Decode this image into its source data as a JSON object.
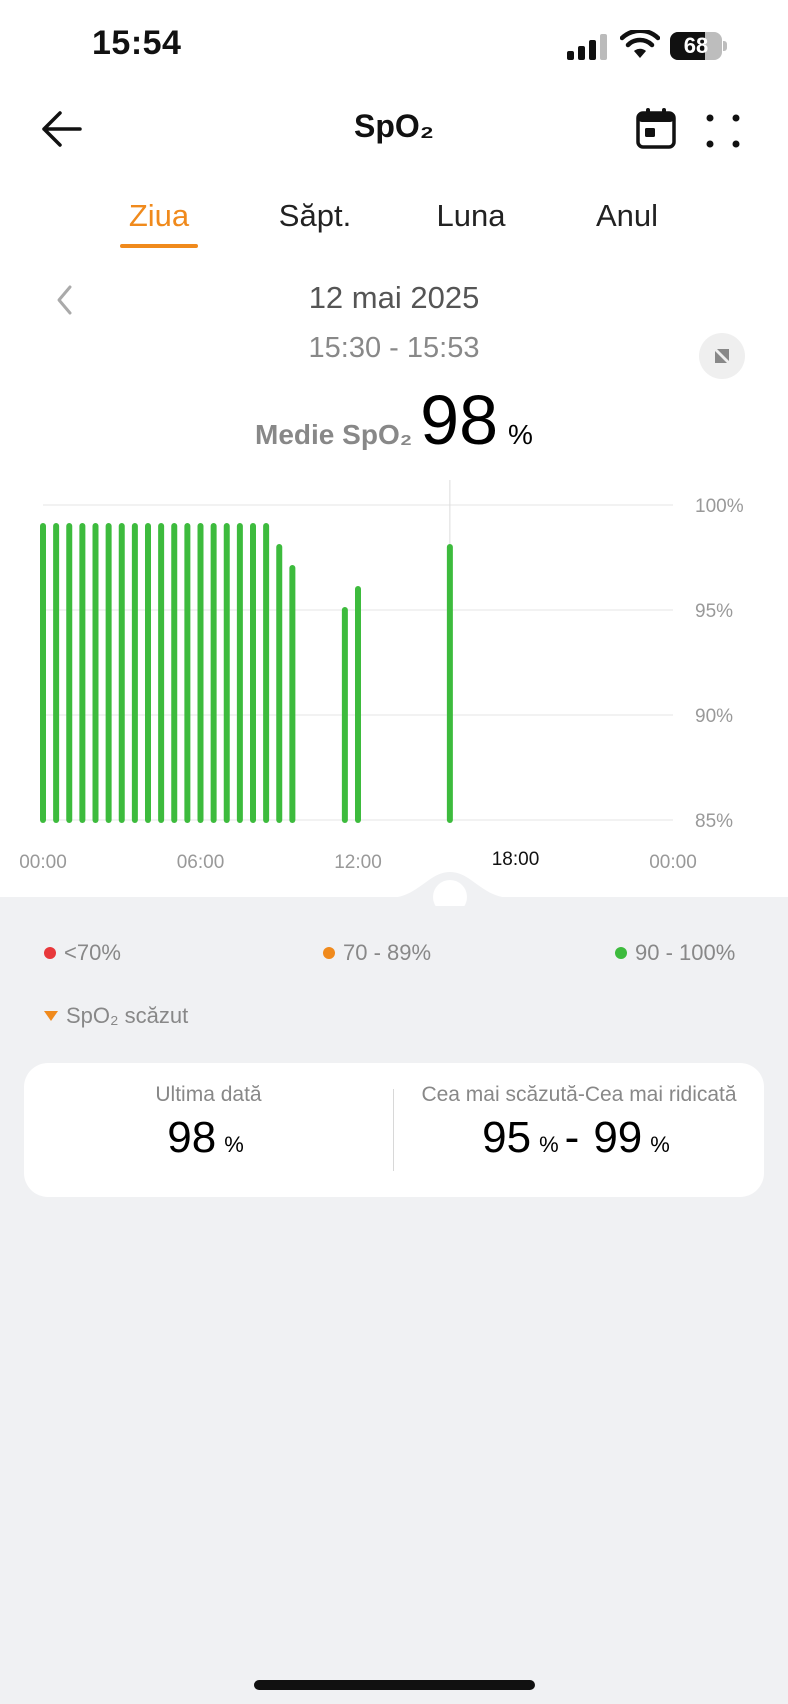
{
  "status_bar": {
    "time": "15:54",
    "battery": "68",
    "battery_level": 0.68
  },
  "header": {
    "title": "SpO₂"
  },
  "tabs": [
    {
      "label": "Ziua",
      "active": true
    },
    {
      "label": "Săpt.",
      "active": false
    },
    {
      "label": "Luna",
      "active": false
    },
    {
      "label": "Anul",
      "active": false
    }
  ],
  "date_nav": {
    "date": "12 mai 2025",
    "time_range": "15:30 - 15:53"
  },
  "average": {
    "label": "Medie SpO₂",
    "value": "98",
    "unit": "%"
  },
  "chart_data": {
    "type": "bar",
    "x_tick_labels": [
      "00:00",
      "06:00",
      "12:00",
      "18:00",
      "00:00"
    ],
    "selected_x_label": "18:00",
    "y_tick_labels": [
      "100%",
      "95%",
      "90%",
      "85%"
    ],
    "ylim": [
      85,
      100
    ],
    "xlim_hours": [
      0,
      24
    ],
    "grid": true,
    "bar_color": "#3dbb3d",
    "bars": [
      {
        "hour": 0.0,
        "value": 99
      },
      {
        "hour": 0.5,
        "value": 99
      },
      {
        "hour": 1.0,
        "value": 99
      },
      {
        "hour": 1.5,
        "value": 99
      },
      {
        "hour": 2.0,
        "value": 99
      },
      {
        "hour": 2.5,
        "value": 99
      },
      {
        "hour": 3.0,
        "value": 99
      },
      {
        "hour": 3.5,
        "value": 99
      },
      {
        "hour": 4.0,
        "value": 99
      },
      {
        "hour": 4.5,
        "value": 99
      },
      {
        "hour": 5.0,
        "value": 99
      },
      {
        "hour": 5.5,
        "value": 99
      },
      {
        "hour": 6.0,
        "value": 99
      },
      {
        "hour": 6.5,
        "value": 99
      },
      {
        "hour": 7.0,
        "value": 99
      },
      {
        "hour": 7.5,
        "value": 99
      },
      {
        "hour": 8.0,
        "value": 99
      },
      {
        "hour": 8.5,
        "value": 99
      },
      {
        "hour": 9.0,
        "value": 98
      },
      {
        "hour": 9.5,
        "value": 97
      },
      {
        "hour": 11.5,
        "value": 95
      },
      {
        "hour": 12.0,
        "value": 96
      },
      {
        "hour": 15.5,
        "value": 98
      }
    ],
    "selected_hour": 15.5
  },
  "legend": [
    {
      "label": "<70%",
      "color": "#e8383b"
    },
    {
      "label": "70 - 89%",
      "color": "#f08a1c"
    },
    {
      "label": "90 - 100%",
      "color": "#3dbb3d"
    }
  ],
  "low_marker": {
    "label": "SpO₂ scăzut",
    "color": "#f08a1c"
  },
  "summary": {
    "last": {
      "label": "Ultima dată",
      "value": "98",
      "unit": "%"
    },
    "range": {
      "label": "Cea mai scăzută-Cea mai ridicată",
      "min": "95",
      "min_unit": "%",
      "separator": "-",
      "max": "99",
      "max_unit": "%"
    }
  },
  "colors": {
    "accent": "#f08a1c",
    "panel_bg": "#f0f1f3"
  }
}
